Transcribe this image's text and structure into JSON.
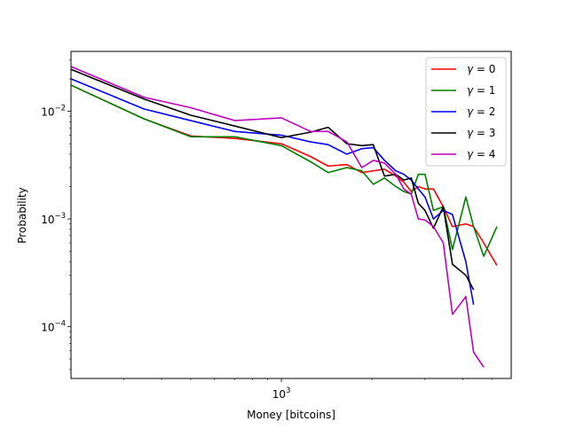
{
  "chart_data": {
    "type": "line",
    "xlabel": "Money [bitcoins]",
    "ylabel": "Probability",
    "xscale": "log",
    "yscale": "log",
    "xlim": [
      200,
      5800
    ],
    "ylim": [
      3.3e-05,
      0.036
    ],
    "x_ticks": [
      {
        "value": 1000,
        "base": "10",
        "exp": "3"
      }
    ],
    "y_ticks": [
      {
        "value": 0.0001,
        "base": "10",
        "exp": "−4"
      },
      {
        "value": 0.001,
        "base": "10",
        "exp": "−3"
      },
      {
        "value": 0.01,
        "base": "10",
        "exp": "−2"
      }
    ],
    "grid": false,
    "legend": "top-right",
    "series": [
      {
        "name": "γ = 0",
        "gamma_label": "γ",
        "value_label": "= 0",
        "color": "#ff0000",
        "x": [
          200,
          350,
          500,
          700,
          1000,
          1250,
          1430,
          1650,
          1850,
          2020,
          2200,
          2400,
          2550,
          2700,
          2850,
          3000,
          3200,
          3450,
          3700,
          4100,
          4350,
          4700,
          5200
        ],
        "y": [
          0.0175,
          0.0085,
          0.0059,
          0.0056,
          0.005,
          0.0038,
          0.0031,
          0.0032,
          0.0027,
          0.0028,
          0.0029,
          0.0025,
          0.0022,
          0.0018,
          0.002,
          0.0019,
          0.0019,
          0.0013,
          0.00085,
          0.0009,
          0.00085,
          0.0006,
          0.00037
        ]
      },
      {
        "name": "γ = 1",
        "gamma_label": "γ",
        "value_label": "= 1",
        "color": "#008000",
        "x": [
          200,
          350,
          500,
          700,
          1000,
          1250,
          1430,
          1650,
          1850,
          2020,
          2200,
          2400,
          2550,
          2700,
          2850,
          3000,
          3200,
          3450,
          3700,
          4100,
          4350,
          4700,
          5200
        ],
        "y": [
          0.0175,
          0.0085,
          0.0058,
          0.0058,
          0.0048,
          0.0034,
          0.0027,
          0.003,
          0.0028,
          0.0021,
          0.0024,
          0.002,
          0.0018,
          0.0017,
          0.0026,
          0.0026,
          0.0012,
          0.0013,
          0.00052,
          0.0016,
          0.00085,
          0.00045,
          0.00085
        ]
      },
      {
        "name": "γ = 2",
        "gamma_label": "γ",
        "value_label": "= 2",
        "color": "#0000ff",
        "x": [
          200,
          350,
          500,
          700,
          1000,
          1250,
          1430,
          1650,
          1850,
          2020,
          2200,
          2400,
          2550,
          2700,
          2850,
          3000,
          3200,
          3450,
          3700,
          4100,
          4350
        ],
        "y": [
          0.02,
          0.0105,
          0.0082,
          0.0065,
          0.006,
          0.0052,
          0.0049,
          0.004,
          0.0045,
          0.0046,
          0.0035,
          0.0028,
          0.0026,
          0.0023,
          0.0019,
          0.0016,
          0.001,
          0.0012,
          0.0011,
          0.0004,
          0.00016
        ]
      },
      {
        "name": "γ = 3",
        "gamma_label": "γ",
        "value_label": "= 3",
        "color": "#000000",
        "x": [
          200,
          350,
          500,
          700,
          1000,
          1250,
          1430,
          1650,
          1850,
          2020,
          2200,
          2400,
          2550,
          2700,
          2850,
          3000,
          3200,
          3450,
          3700,
          4100,
          4350
        ],
        "y": [
          0.0245,
          0.013,
          0.0092,
          0.0073,
          0.0057,
          0.0064,
          0.0071,
          0.005,
          0.0048,
          0.0049,
          0.0025,
          0.0026,
          0.0023,
          0.0024,
          0.0014,
          0.0012,
          0.00082,
          0.0013,
          0.00038,
          0.0003,
          0.00022
        ]
      },
      {
        "name": "γ = 4",
        "gamma_label": "γ",
        "value_label": "= 4",
        "color": "#bf00bf",
        "x": [
          200,
          350,
          500,
          700,
          1000,
          1250,
          1430,
          1650,
          1850,
          2020,
          2200,
          2400,
          2550,
          2700,
          2850,
          3000,
          3200,
          3450,
          3700,
          4100,
          4350,
          4700
        ],
        "y": [
          0.026,
          0.0135,
          0.0108,
          0.0082,
          0.0087,
          0.0065,
          0.0065,
          0.0052,
          0.003,
          0.0035,
          0.0033,
          0.0026,
          0.0019,
          0.0017,
          0.001,
          0.00098,
          0.00085,
          0.0006,
          0.00013,
          0.00019,
          5.8e-05,
          4.2e-05
        ]
      }
    ]
  }
}
